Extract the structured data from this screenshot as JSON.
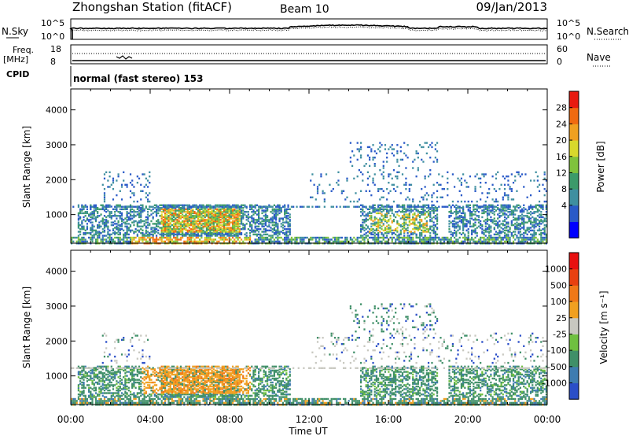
{
  "header": {
    "station": "Zhongshan Station (fitACF)",
    "beam": "Beam 10",
    "date": "09/Jan/2013"
  },
  "strip1": {
    "left_label": "N.Sky",
    "left_ticks": [
      "10^5",
      "10^0"
    ],
    "right_ticks": [
      "10^5",
      "10^0"
    ],
    "right_label": "N.Search"
  },
  "strip2": {
    "left_label_top": "Freq.",
    "left_label_bottom": "[MHz]",
    "left_ticks": [
      "18",
      "8"
    ],
    "right_ticks": [
      "60",
      "0"
    ],
    "right_label": "Nave"
  },
  "cpid": {
    "label": "CPID",
    "text": "normal (fast stereo) 153"
  },
  "chart_data": [
    {
      "type": "heatmap",
      "name": "power-panel",
      "ylabel": "Slant Range [km]",
      "yticks": [
        "4000",
        "3000",
        "2000",
        "1000"
      ],
      "ylim": [
        180,
        4600
      ],
      "x_ticks": [
        "00:00",
        "04:00",
        "08:00",
        "12:00",
        "16:00",
        "20:00",
        "00:00"
      ],
      "xlim_hours": [
        0,
        24
      ],
      "colorbar": {
        "label": "Power [dB]",
        "ticks": [
          "28",
          "24",
          "20",
          "16",
          "12",
          "8",
          "4"
        ],
        "range": [
          0,
          32
        ],
        "colors": [
          "#0000ff",
          "#2a5ac8",
          "#3f8fa0",
          "#3c9a6a",
          "#7fc23c",
          "#d8d82c",
          "#f0a020",
          "#f06a10",
          "#e81a10"
        ]
      }
    },
    {
      "type": "heatmap",
      "name": "velocity-panel",
      "ylabel": "Slant Range [km]",
      "yticks": [
        "4000",
        "3000",
        "2000",
        "1000"
      ],
      "ylim": [
        180,
        4600
      ],
      "x_ticks": [
        "00:00",
        "04:00",
        "08:00",
        "12:00",
        "16:00",
        "20:00",
        "00:00"
      ],
      "xlim_hours": [
        0,
        24
      ],
      "xlabel": "Time UT",
      "colorbar": {
        "label": "Velocity [m s⁻¹]",
        "ticks": [
          "1000",
          "500",
          "100",
          "25",
          "-25",
          "-100",
          "-500",
          "-1000"
        ],
        "colors": [
          "#2a4ec8",
          "#3e7cb0",
          "#3f8f68",
          "#6fc040",
          "#c8c8c0",
          "#f0a020",
          "#f07818",
          "#e84010",
          "#e81010"
        ]
      }
    }
  ]
}
